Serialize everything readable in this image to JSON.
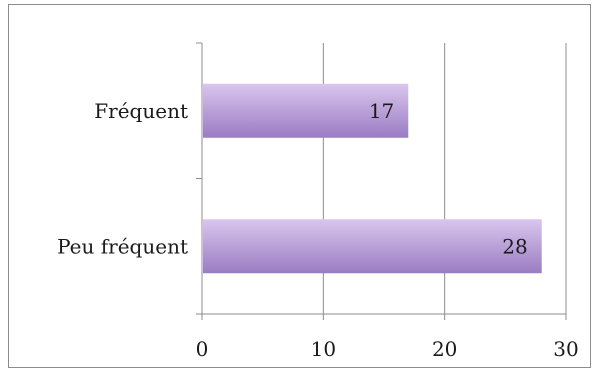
{
  "chart_data": {
    "type": "bar",
    "orientation": "horizontal",
    "categories": [
      "Fréquent",
      "Peu fréquent"
    ],
    "values": [
      17,
      28
    ],
    "data_labels": [
      "17",
      "28"
    ],
    "xlim": [
      0,
      30
    ],
    "x_ticks": [
      0,
      10,
      20,
      30
    ],
    "x_tick_labels": [
      "0",
      "10",
      "20",
      "30"
    ],
    "grid": "vertical",
    "legend": "none",
    "title": "",
    "xlabel": "",
    "ylabel": "",
    "colors": {
      "bar_light": "#d9c6ee",
      "bar_dark": "#9a7cc2",
      "grid": "#8c8c8c",
      "frame": "#8c8c8c"
    }
  }
}
